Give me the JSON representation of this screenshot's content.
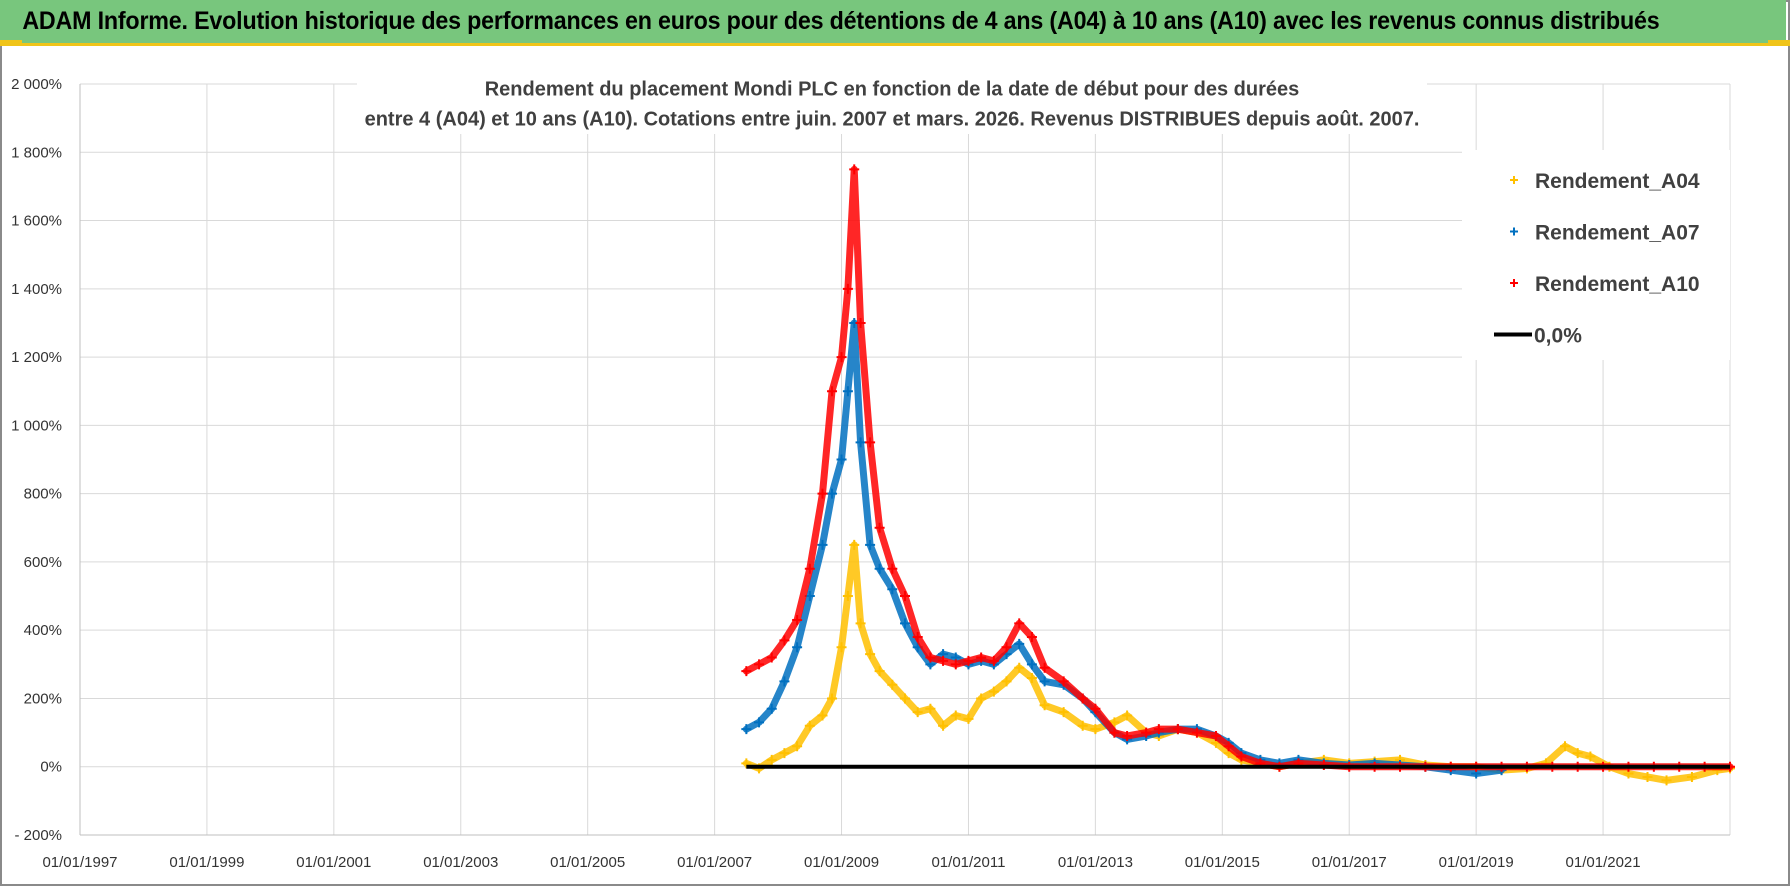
{
  "banner": {
    "title": "ADAM Informe. Evolution historique des performances en euros pour des détentions de 4 ans (A04) à 10 ans (A10) avec les revenus connus distribués"
  },
  "colors": {
    "banner_bg": "#78c67d",
    "banner_accent": "#f0c419",
    "A04": "#ffc000",
    "A07": "#0070c0",
    "A10": "#ff0000",
    "zero": "#000000",
    "grid": "#d9d9d9"
  },
  "chart_data": {
    "type": "scatter",
    "title_lines": [
      "Rendement du placement Mondi PLC en fonction de la date de début pour des durées",
      "entre 4 (A04) et 10 ans (A10). Cotations entre juin. 2007 et mars. 2026. Revenus DISTRIBUES depuis août. 2007."
    ],
    "xlabel": "",
    "ylabel": "",
    "xlim": [
      1997.0,
      2023.0
    ],
    "ylim": [
      -200,
      2000
    ],
    "y_ticks": [
      -200,
      0,
      200,
      400,
      600,
      800,
      1000,
      1200,
      1400,
      1600,
      1800,
      2000
    ],
    "y_tick_labels": [
      "- 200%",
      "0%",
      "200%",
      "400%",
      "600%",
      "800%",
      "1 000%",
      "1 200%",
      "1 400%",
      "1 600%",
      "1 800%",
      "2 000%"
    ],
    "x_ticks": [
      1997,
      1999,
      2001,
      2003,
      2005,
      2007,
      2009,
      2011,
      2013,
      2015,
      2017,
      2019,
      2021
    ],
    "x_tick_labels": [
      "01/01/1997",
      "01/01/1999",
      "01/01/2001",
      "01/01/2003",
      "01/01/2005",
      "01/01/2007",
      "01/01/2009",
      "01/01/2011",
      "01/01/2013",
      "01/01/2015",
      "01/01/2017",
      "01/01/2019",
      "01/01/2021"
    ],
    "legend_position": "top-right",
    "series": [
      {
        "name": "Rendement_A04",
        "marker": "+",
        "x": [
          2007.5,
          2007.7,
          2007.9,
          2008.1,
          2008.3,
          2008.5,
          2008.7,
          2008.85,
          2009.0,
          2009.1,
          2009.2,
          2009.3,
          2009.45,
          2009.6,
          2009.8,
          2010.0,
          2010.2,
          2010.4,
          2010.6,
          2010.8,
          2011.0,
          2011.2,
          2011.4,
          2011.6,
          2011.8,
          2012.0,
          2012.2,
          2012.5,
          2012.8,
          2013.0,
          2013.3,
          2013.5,
          2013.8,
          2014.0,
          2014.3,
          2014.6,
          2014.9,
          2015.1,
          2015.3,
          2015.6,
          2015.9,
          2016.2,
          2016.6,
          2017.0,
          2017.4,
          2017.8,
          2018.2,
          2018.6,
          2019.0,
          2019.4,
          2019.8,
          2020.1,
          2020.4,
          2020.6,
          2020.8,
          2021.1,
          2021.4,
          2021.7,
          2022.0,
          2022.4,
          2022.8,
          2023.0
        ],
        "y": [
          10,
          -5,
          20,
          40,
          60,
          120,
          150,
          200,
          350,
          500,
          650,
          420,
          330,
          280,
          240,
          200,
          160,
          170,
          120,
          150,
          140,
          200,
          220,
          250,
          290,
          260,
          180,
          160,
          120,
          110,
          130,
          150,
          100,
          90,
          110,
          100,
          70,
          40,
          20,
          10,
          0,
          10,
          20,
          10,
          15,
          20,
          5,
          0,
          0,
          -10,
          -5,
          10,
          60,
          40,
          30,
          0,
          -20,
          -30,
          -40,
          -30,
          -10,
          -5
        ]
      },
      {
        "name": "Rendement_A07",
        "marker": "+",
        "x": [
          2007.5,
          2007.7,
          2007.9,
          2008.1,
          2008.3,
          2008.5,
          2008.7,
          2008.85,
          2009.0,
          2009.1,
          2009.2,
          2009.3,
          2009.45,
          2009.6,
          2009.8,
          2010.0,
          2010.2,
          2010.4,
          2010.6,
          2010.8,
          2011.0,
          2011.2,
          2011.4,
          2011.6,
          2011.8,
          2012.0,
          2012.2,
          2012.5,
          2012.8,
          2013.0,
          2013.3,
          2013.5,
          2013.8,
          2014.0,
          2014.3,
          2014.6,
          2014.9,
          2015.1,
          2015.3,
          2015.6,
          2015.9,
          2016.2,
          2016.6,
          2017.0,
          2017.4,
          2017.8,
          2018.2,
          2018.6,
          2019.0,
          2019.4
        ],
        "y": [
          110,
          130,
          170,
          250,
          350,
          500,
          650,
          800,
          900,
          1100,
          1300,
          950,
          650,
          580,
          520,
          420,
          350,
          300,
          330,
          320,
          300,
          310,
          300,
          330,
          360,
          300,
          250,
          240,
          200,
          160,
          100,
          80,
          90,
          100,
          110,
          110,
          90,
          70,
          40,
          20,
          10,
          20,
          10,
          5,
          10,
          5,
          0,
          -10,
          -20,
          -10
        ]
      },
      {
        "name": "Rendement_A10",
        "marker": "+",
        "x": [
          2007.5,
          2007.7,
          2007.9,
          2008.1,
          2008.3,
          2008.5,
          2008.7,
          2008.85,
          2009.0,
          2009.1,
          2009.2,
          2009.3,
          2009.45,
          2009.6,
          2009.8,
          2010.0,
          2010.2,
          2010.4,
          2010.6,
          2010.8,
          2011.0,
          2011.2,
          2011.4,
          2011.6,
          2011.8,
          2012.0,
          2012.2,
          2012.5,
          2012.8,
          2013.0,
          2013.3,
          2013.5,
          2013.8,
          2014.0,
          2014.3,
          2014.6,
          2014.9,
          2015.1,
          2015.3,
          2015.6,
          2015.9,
          2016.2,
          2016.6,
          2017.0,
          2017.4,
          2017.8,
          2018.2,
          2018.6,
          2019.0,
          2019.4,
          2019.8,
          2020.2,
          2020.6,
          2021.0,
          2021.4,
          2021.8,
          2022.2,
          2022.6,
          2023.0
        ],
        "y": [
          280,
          300,
          320,
          370,
          430,
          580,
          800,
          1100,
          1200,
          1400,
          1750,
          1300,
          950,
          700,
          580,
          500,
          380,
          320,
          310,
          300,
          310,
          320,
          310,
          350,
          420,
          380,
          290,
          250,
          200,
          170,
          100,
          90,
          100,
          110,
          110,
          100,
          90,
          60,
          30,
          10,
          0,
          10,
          5,
          0,
          0,
          0,
          0,
          0,
          0,
          0,
          0,
          0,
          0,
          0,
          0,
          0,
          0,
          0,
          0
        ]
      },
      {
        "name": "0,0%",
        "marker": "line",
        "x": [
          2007.5,
          2023.0
        ],
        "y": [
          0,
          0
        ]
      }
    ]
  }
}
